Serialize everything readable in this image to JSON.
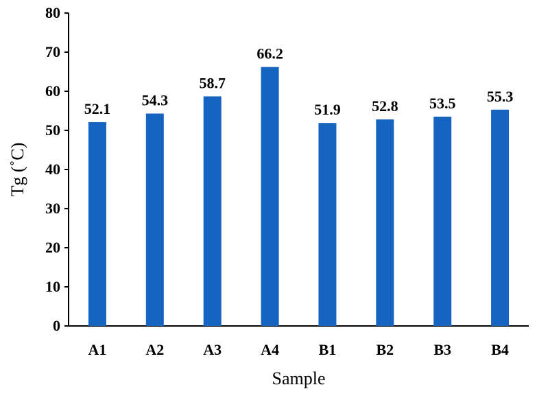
{
  "chart_data": {
    "type": "bar",
    "title": "",
    "xlabel": "Sample",
    "ylabel": "Tg (˚C)",
    "categories": [
      "A1",
      "A2",
      "A3",
      "A4",
      "B1",
      "B2",
      "B3",
      "B4"
    ],
    "values": [
      52.1,
      54.3,
      58.7,
      66.2,
      51.9,
      52.8,
      53.5,
      55.3
    ],
    "data_labels": [
      "52.1",
      "54.3",
      "58.7",
      "66.2",
      "51.9",
      "52.8",
      "53.5",
      "55.3"
    ],
    "ylim": [
      0,
      80
    ],
    "yticks": [
      0,
      10,
      20,
      30,
      40,
      50,
      60,
      70,
      80
    ],
    "grid": false,
    "legend": "none",
    "bar_color": "#1565C0"
  }
}
